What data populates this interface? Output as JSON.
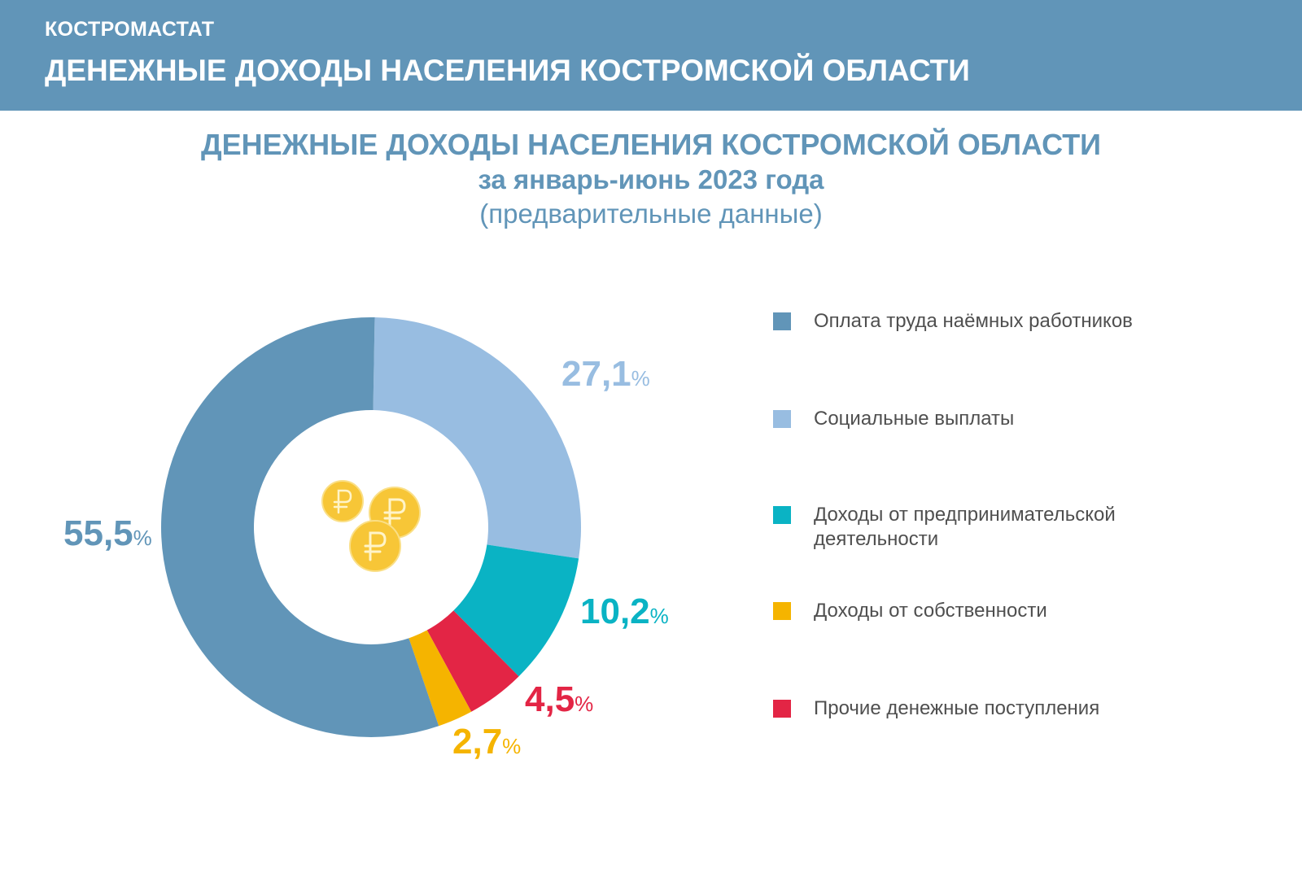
{
  "header": {
    "org": "КОСТРОМАСТАТ",
    "title": "ДЕНЕЖНЫЕ ДОХОДЫ НАСЕЛЕНИЯ КОСТРОМСКОЙ ОБЛАСТИ"
  },
  "chart_data": {
    "type": "pie",
    "title": "ДЕНЕЖНЫЕ ДОХОДЫ НАСЕЛЕНИЯ КОСТРОМСКОЙ ОБЛАСТИ",
    "subtitle": "за январь-июнь 2023 года",
    "note": "(предварительные данные)",
    "unit": "%",
    "legend_position": "right",
    "slices": [
      {
        "label": "Оплата труда наёмных работников",
        "value": 55.5,
        "value_label": "55,5",
        "color": "#6195b8"
      },
      {
        "label": "Социальные выплаты",
        "value": 27.1,
        "value_label": "27,1",
        "color": "#98bde1"
      },
      {
        "label": "Доходы от предпринимательской деятельности",
        "value": 10.2,
        "value_label": "10,2",
        "color": "#0ab3c4"
      },
      {
        "label": "Доходы от собственности",
        "value": 2.7,
        "value_label": "2,7",
        "color": "#f5b400"
      },
      {
        "label": "Прочие денежные поступления",
        "value": 4.5,
        "value_label": "4,5",
        "color": "#e32545"
      }
    ]
  },
  "icons": {
    "center": "ruble-coins-icon"
  }
}
